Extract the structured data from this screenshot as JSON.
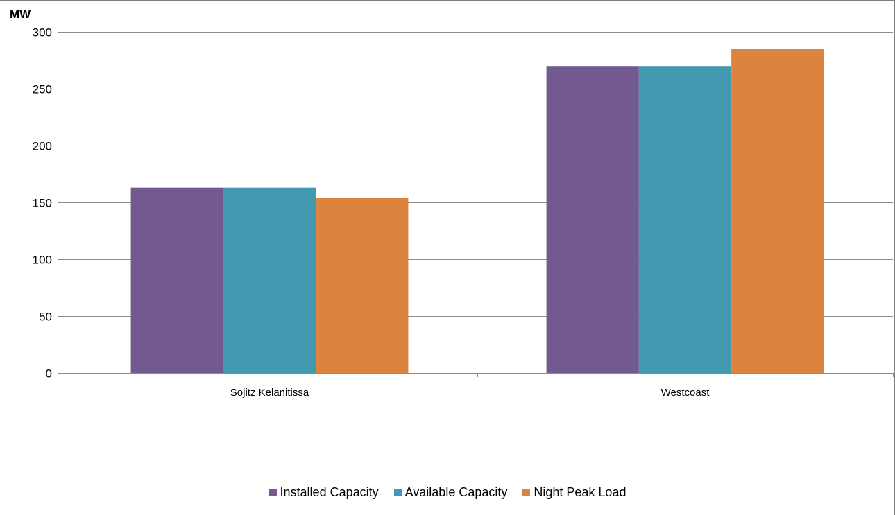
{
  "chart_data": {
    "type": "bar",
    "unit_label": "MW",
    "categories": [
      "Sojitz Kelanitissa",
      "Westcoast"
    ],
    "series": [
      {
        "name": "Installed Capacity",
        "color": "#725990",
        "values": [
          163,
          270
        ]
      },
      {
        "name": "Available Capacity",
        "color": "#4299B0",
        "values": [
          163,
          270
        ]
      },
      {
        "name": "Night Peak Load",
        "color": "#DC843E",
        "values": [
          154,
          285
        ]
      }
    ],
    "ylim": [
      0,
      300
    ],
    "yticks": [
      0,
      50,
      100,
      150,
      200,
      250,
      300
    ],
    "grid": true,
    "legend_position": "bottom"
  }
}
